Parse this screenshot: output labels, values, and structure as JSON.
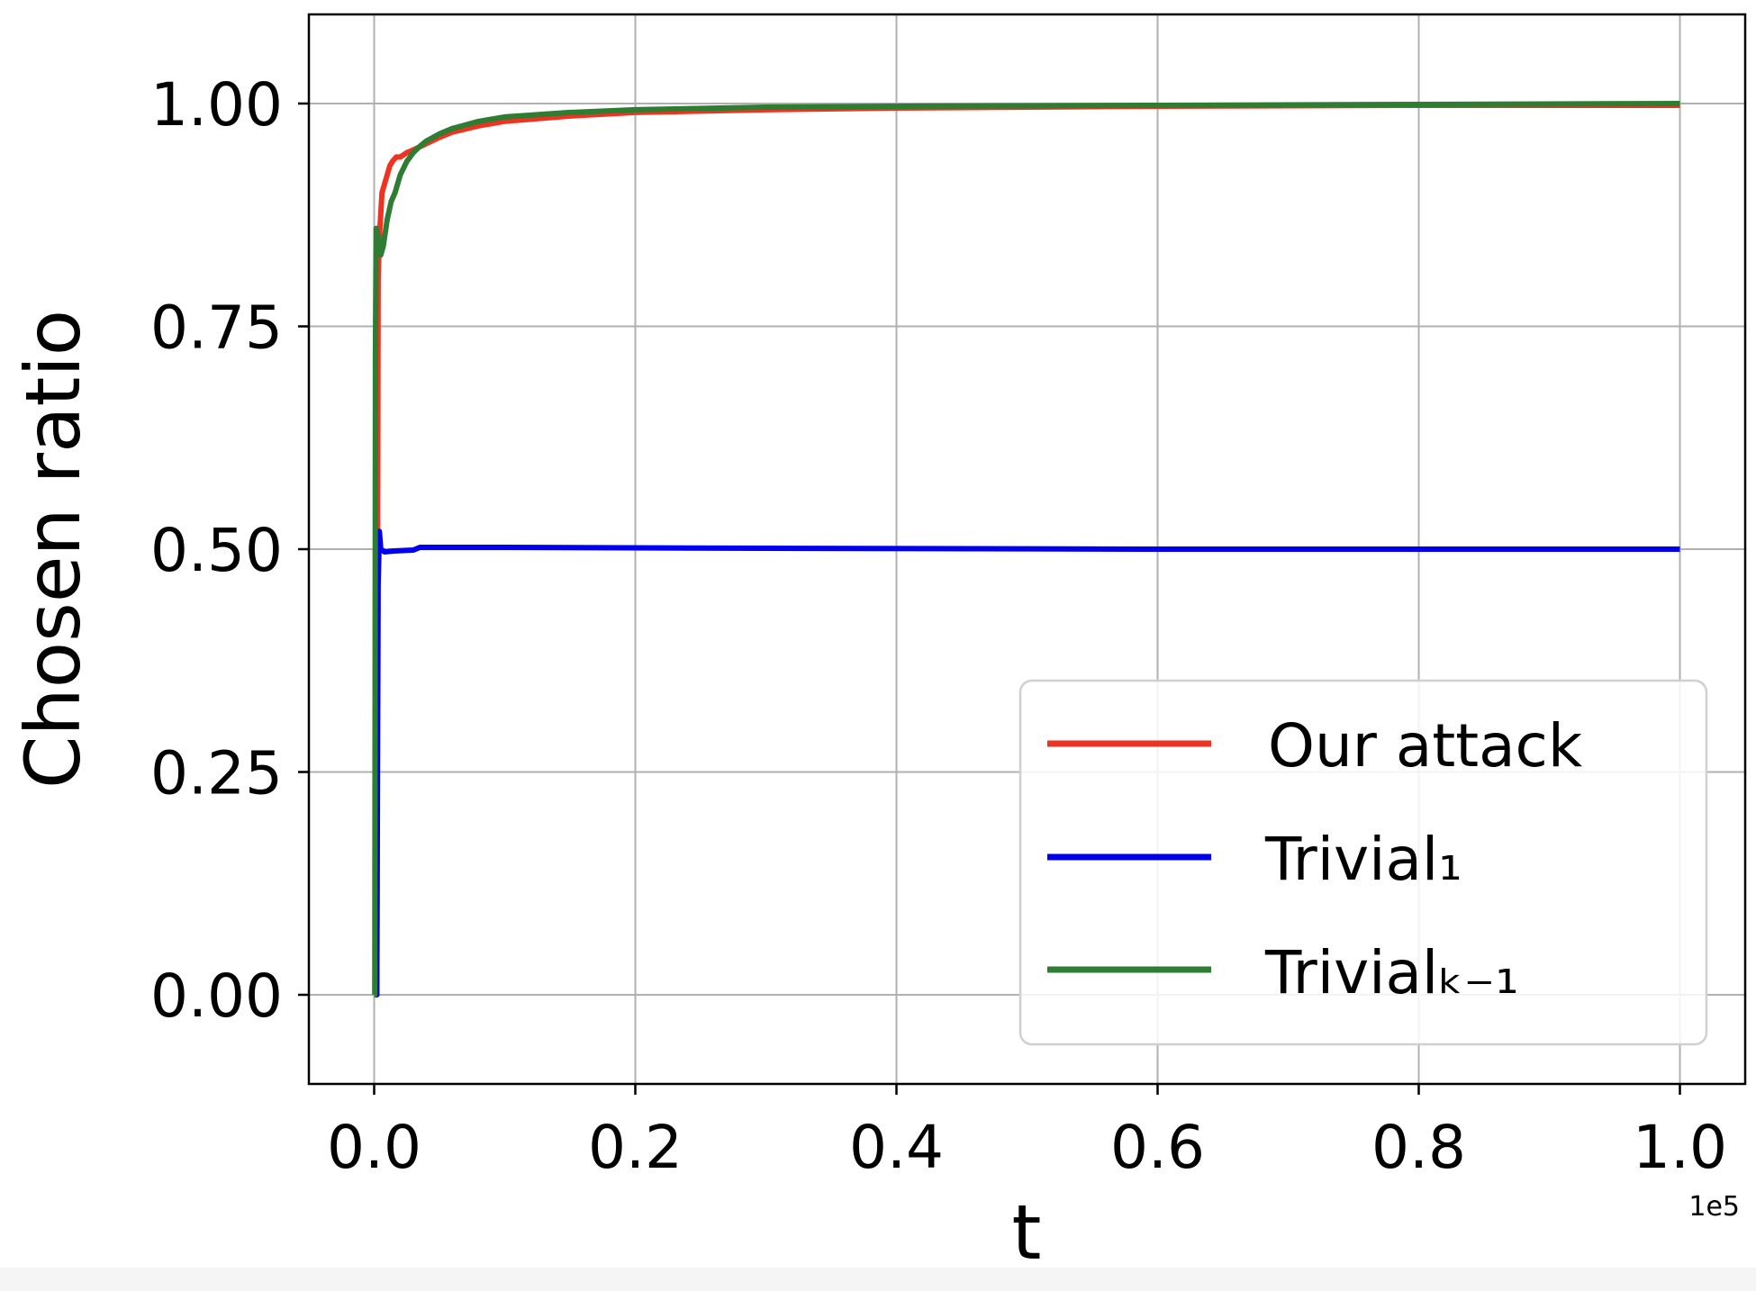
{
  "chart_data": {
    "type": "line",
    "xlabel": "t",
    "ylabel": "Chosen ratio",
    "x_offset_label": "1e5",
    "xlim": [
      -0.05,
      1.05
    ],
    "ylim": [
      -0.1,
      1.1
    ],
    "xticks": [
      0.0,
      0.2,
      0.4,
      0.6,
      0.8,
      1.0
    ],
    "xtick_labels": [
      "0.0",
      "0.2",
      "0.4",
      "0.6",
      "0.8",
      "1.0"
    ],
    "yticks": [
      0.0,
      0.25,
      0.5,
      0.75,
      1.0
    ],
    "ytick_labels": [
      "0.00",
      "0.25",
      "0.50",
      "0.75",
      "1.00"
    ],
    "grid": true,
    "legend_position": "lower-right",
    "series": [
      {
        "name": "Our attack",
        "color": "#ee3322",
        "points": [
          [
            0.0,
            0.0
          ],
          [
            0.002,
            0.0
          ],
          [
            0.003,
            0.8
          ],
          [
            0.004,
            0.85
          ],
          [
            0.006,
            0.9
          ],
          [
            0.008,
            0.91
          ],
          [
            0.01,
            0.92
          ],
          [
            0.012,
            0.93
          ],
          [
            0.014,
            0.935
          ],
          [
            0.017,
            0.94
          ],
          [
            0.02,
            0.94
          ],
          [
            0.025,
            0.945
          ],
          [
            0.03,
            0.948
          ],
          [
            0.04,
            0.955
          ],
          [
            0.05,
            0.962
          ],
          [
            0.06,
            0.968
          ],
          [
            0.08,
            0.975
          ],
          [
            0.1,
            0.98
          ],
          [
            0.15,
            0.986
          ],
          [
            0.2,
            0.99
          ],
          [
            0.3,
            0.993
          ],
          [
            0.4,
            0.995
          ],
          [
            0.6,
            0.997
          ],
          [
            0.8,
            0.998
          ],
          [
            1.0,
            0.998
          ]
        ]
      },
      {
        "name": "Trivial₁",
        "color": "#0000ee",
        "points": [
          [
            0.0,
            0.0
          ],
          [
            0.002,
            0.0
          ],
          [
            0.003,
            0.46
          ],
          [
            0.004,
            0.52
          ],
          [
            0.005,
            0.5
          ],
          [
            0.008,
            0.497
          ],
          [
            0.015,
            0.498
          ],
          [
            0.03,
            0.499
          ],
          [
            0.035,
            0.502
          ],
          [
            0.1,
            0.502
          ],
          [
            0.3,
            0.501
          ],
          [
            0.6,
            0.5
          ],
          [
            1.0,
            0.5
          ]
        ]
      },
      {
        "name": "Trivialₖ₋₁",
        "color": "#2e7d32",
        "points": [
          [
            0.0,
            0.0
          ],
          [
            0.0005,
            0.0
          ],
          [
            0.001,
            0.72
          ],
          [
            0.0015,
            0.86
          ],
          [
            0.003,
            0.85
          ],
          [
            0.005,
            0.83
          ],
          [
            0.007,
            0.84
          ],
          [
            0.01,
            0.87
          ],
          [
            0.013,
            0.89
          ],
          [
            0.016,
            0.9
          ],
          [
            0.02,
            0.92
          ],
          [
            0.025,
            0.935
          ],
          [
            0.03,
            0.945
          ],
          [
            0.035,
            0.952
          ],
          [
            0.04,
            0.958
          ],
          [
            0.05,
            0.966
          ],
          [
            0.06,
            0.972
          ],
          [
            0.08,
            0.98
          ],
          [
            0.1,
            0.985
          ],
          [
            0.15,
            0.99
          ],
          [
            0.2,
            0.993
          ],
          [
            0.3,
            0.996
          ],
          [
            0.4,
            0.997
          ],
          [
            0.6,
            0.998
          ],
          [
            0.8,
            0.999
          ],
          [
            1.0,
            1.0
          ]
        ]
      }
    ]
  }
}
